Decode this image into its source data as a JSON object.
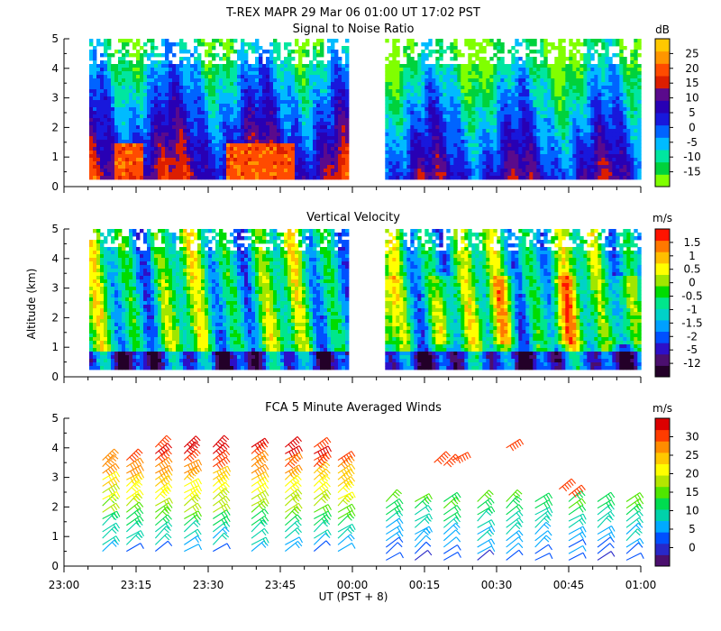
{
  "title": "T-REX   MAPR 29 Mar 06  01:00 UT   17:02   PST",
  "xlabel": "UT  (PST + 8)",
  "ylabel": "Altitude (km)",
  "colors": {
    "snr": [
      "#80ff00",
      "#00d23c",
      "#00e6a0",
      "#00bbff",
      "#0064ff",
      "#1818dc",
      "#2800b4",
      "#5a0a8c",
      "#dc1e00",
      "#ff4b00",
      "#ff9600",
      "#ffc800"
    ],
    "vel": [
      "#230028",
      "#4b0f6e",
      "#2d0fc8",
      "#0050ff",
      "#00a0ff",
      "#00d2c8",
      "#00e68c",
      "#00dc00",
      "#a0e600",
      "#ffff00",
      "#ffbe00",
      "#ff7800",
      "#ff1400"
    ],
    "wind": [
      "#4b0f6e",
      "#2828c8",
      "#0050ff",
      "#00aaff",
      "#00d2aa",
      "#00dc50",
      "#50e600",
      "#b4e600",
      "#ffff00",
      "#ffc800",
      "#ff8c00",
      "#ff3c00",
      "#dc0000"
    ]
  },
  "chart_data": [
    {
      "id": "snr",
      "type": "heatmap",
      "title": "Signal to Noise Ratio",
      "units": "dB",
      "x_range": [
        "23:00",
        "01:00"
      ],
      "ylim": [
        0,
        5
      ],
      "yticks": [
        0,
        1,
        2,
        3,
        4,
        5
      ],
      "xticks": [
        "23:00",
        "23:15",
        "23:30",
        "23:45",
        "00:00",
        "00:15",
        "00:30",
        "00:45",
        "01:00"
      ],
      "colorbar_ticks": [
        25,
        20,
        15,
        10,
        5,
        0,
        -5,
        -10,
        -15
      ],
      "data_gap": [
        "23:59",
        "00:04"
      ],
      "altitude_range_km": [
        0.3,
        5.0
      ],
      "levels": [
        -15,
        25
      ]
    },
    {
      "id": "vel",
      "type": "heatmap",
      "title": "Vertical Velocity",
      "units": "m/s",
      "x_range": [
        "23:00",
        "01:00"
      ],
      "ylim": [
        0,
        5
      ],
      "yticks": [
        0,
        1,
        2,
        3,
        4,
        5
      ],
      "xticks": [
        "23:00",
        "23:15",
        "23:30",
        "23:45",
        "00:00",
        "00:15",
        "00:30",
        "00:45",
        "01:00"
      ],
      "colorbar_ticks": [
        "1.5",
        "1",
        "0.5",
        "0",
        "-0.5",
        "-1",
        "-1.5",
        "-2",
        "-5",
        "-12"
      ],
      "data_gap": [
        "23:59",
        "00:04"
      ],
      "altitude_range_km": [
        0.3,
        5.0
      ]
    },
    {
      "id": "wind",
      "type": "scatter",
      "title": "FCA 5 Minute Averaged Winds",
      "units": "m/s",
      "x_range": [
        "23:00",
        "01:00"
      ],
      "ylim": [
        0,
        5
      ],
      "yticks": [
        0,
        1,
        2,
        3,
        4,
        5
      ],
      "xticks": [
        "23:00",
        "23:15",
        "23:30",
        "23:45",
        "00:00",
        "00:15",
        "00:30",
        "00:45",
        "01:00"
      ],
      "colorbar_ticks": [
        30,
        25,
        20,
        15,
        10,
        5,
        0
      ],
      "speed_range": [
        0,
        30
      ]
    }
  ]
}
